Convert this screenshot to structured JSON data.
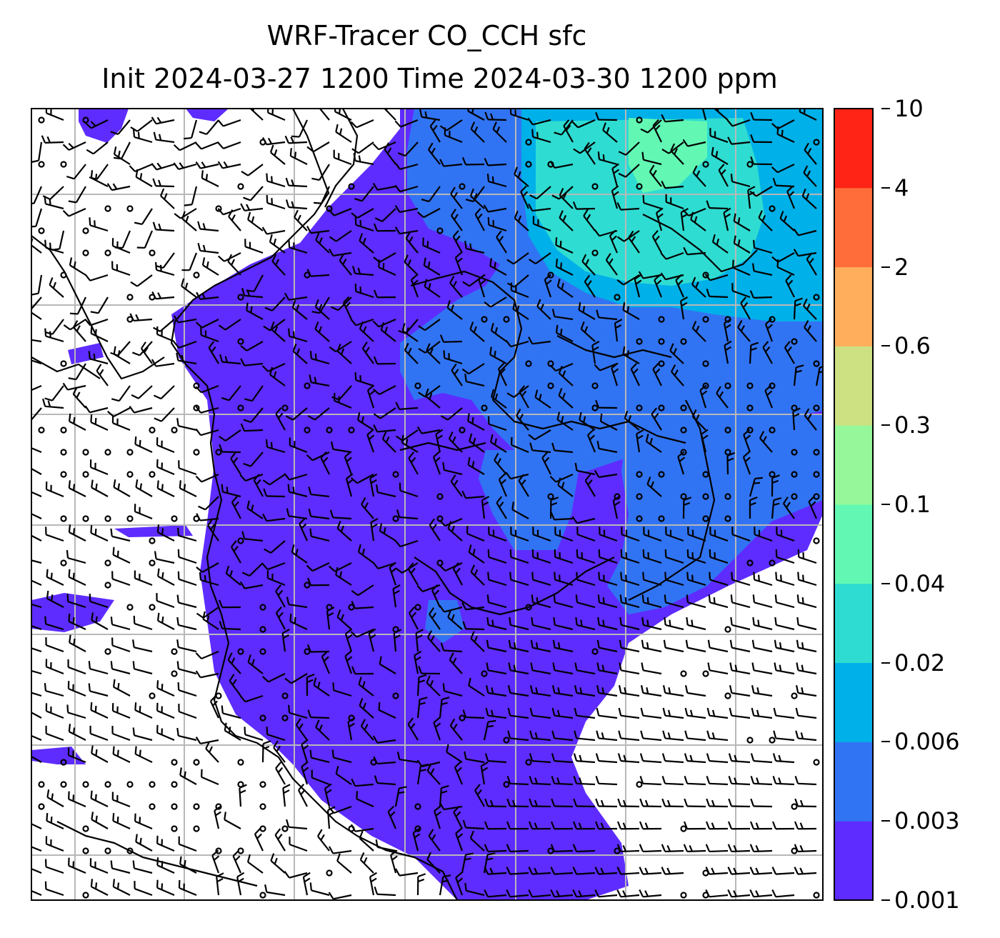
{
  "title": {
    "line1": "WRF-Tracer CO_CCH sfc",
    "line2": "Init 2024-03-27 1200 Time 2024-03-30 1200 ppm"
  },
  "colorbar": {
    "levels": [
      "0.001",
      "0.003",
      "0.006",
      "0.02",
      "0.04",
      "0.1",
      "0.3",
      "0.6",
      "2",
      "4",
      "10"
    ],
    "colors": [
      "#5e2cff",
      "#3174f3",
      "#00b0e8",
      "#2fdcd1",
      "#62f8b4",
      "#95f799",
      "#cde182",
      "#ffae5c",
      "#ff6e3a",
      "#ff2415"
    ]
  },
  "map": {
    "field_colors": {
      "base": "#5e2cff",
      "mid": "#3174f3",
      "high": "#00b0e8",
      "peak": "#2fdcd1",
      "max": "#62f8b4"
    },
    "gridline_color": "#b8b8b8",
    "coast_color": "#000000"
  }
}
